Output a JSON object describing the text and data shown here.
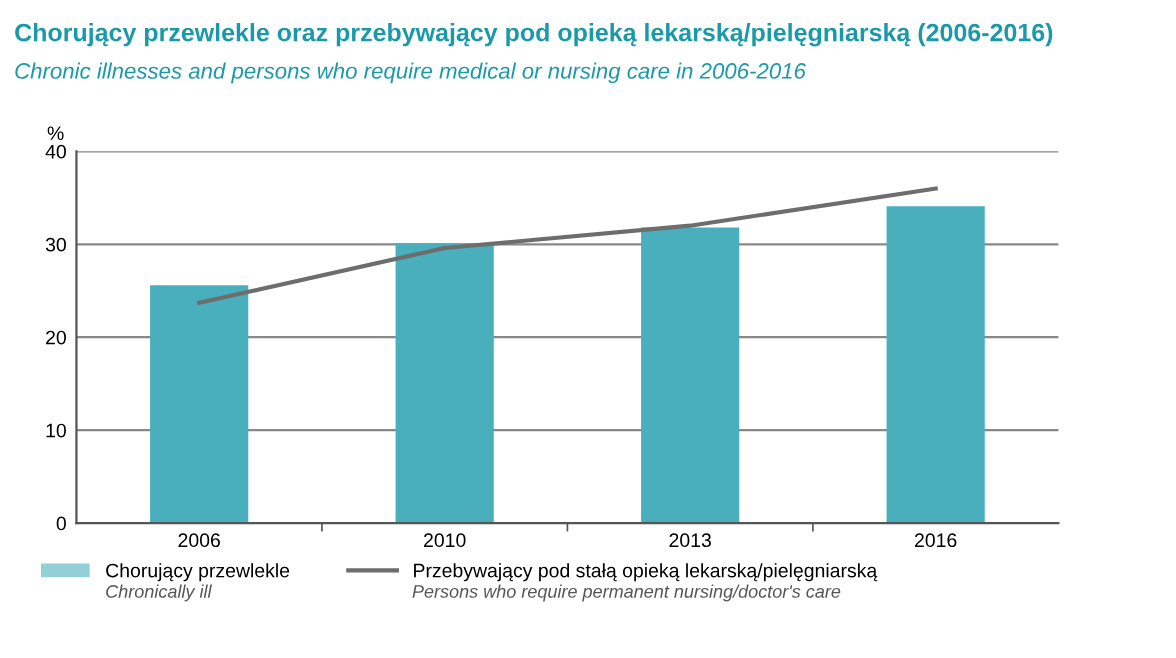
{
  "chart_data": {
    "type": "bar",
    "title": "Chorujący przewlekle oraz przebywający pod opieką lekarską/pielęgniarską (2006-2016)",
    "subtitle": "Chronic illnesses and persons who require medical or nursing care in 2006-2016",
    "ylabel": "%",
    "categories": [
      "2006",
      "2010",
      "2013",
      "2016"
    ],
    "series": [
      {
        "name": "Chorujący przewlekle",
        "color": "#4aafbc",
        "values": [
          25.6,
          30.1,
          31.8,
          34.1
        ]
      },
      {
        "name": "Przebywający pod stałą opieką lekarską/pielęgniarską",
        "type": "line",
        "color": "#6d6d6d",
        "values": [
          23.7,
          29.6,
          32.0,
          36.0
        ]
      }
    ],
    "annotations": [
      "Chronically ill",
      "Persons who require permanent nursing/doctor's care"
    ],
    "ylim": [
      0,
      40
    ],
    "yticks": [
      0,
      10,
      20,
      30,
      40
    ],
    "grid": "y",
    "legend": "bottom"
  }
}
